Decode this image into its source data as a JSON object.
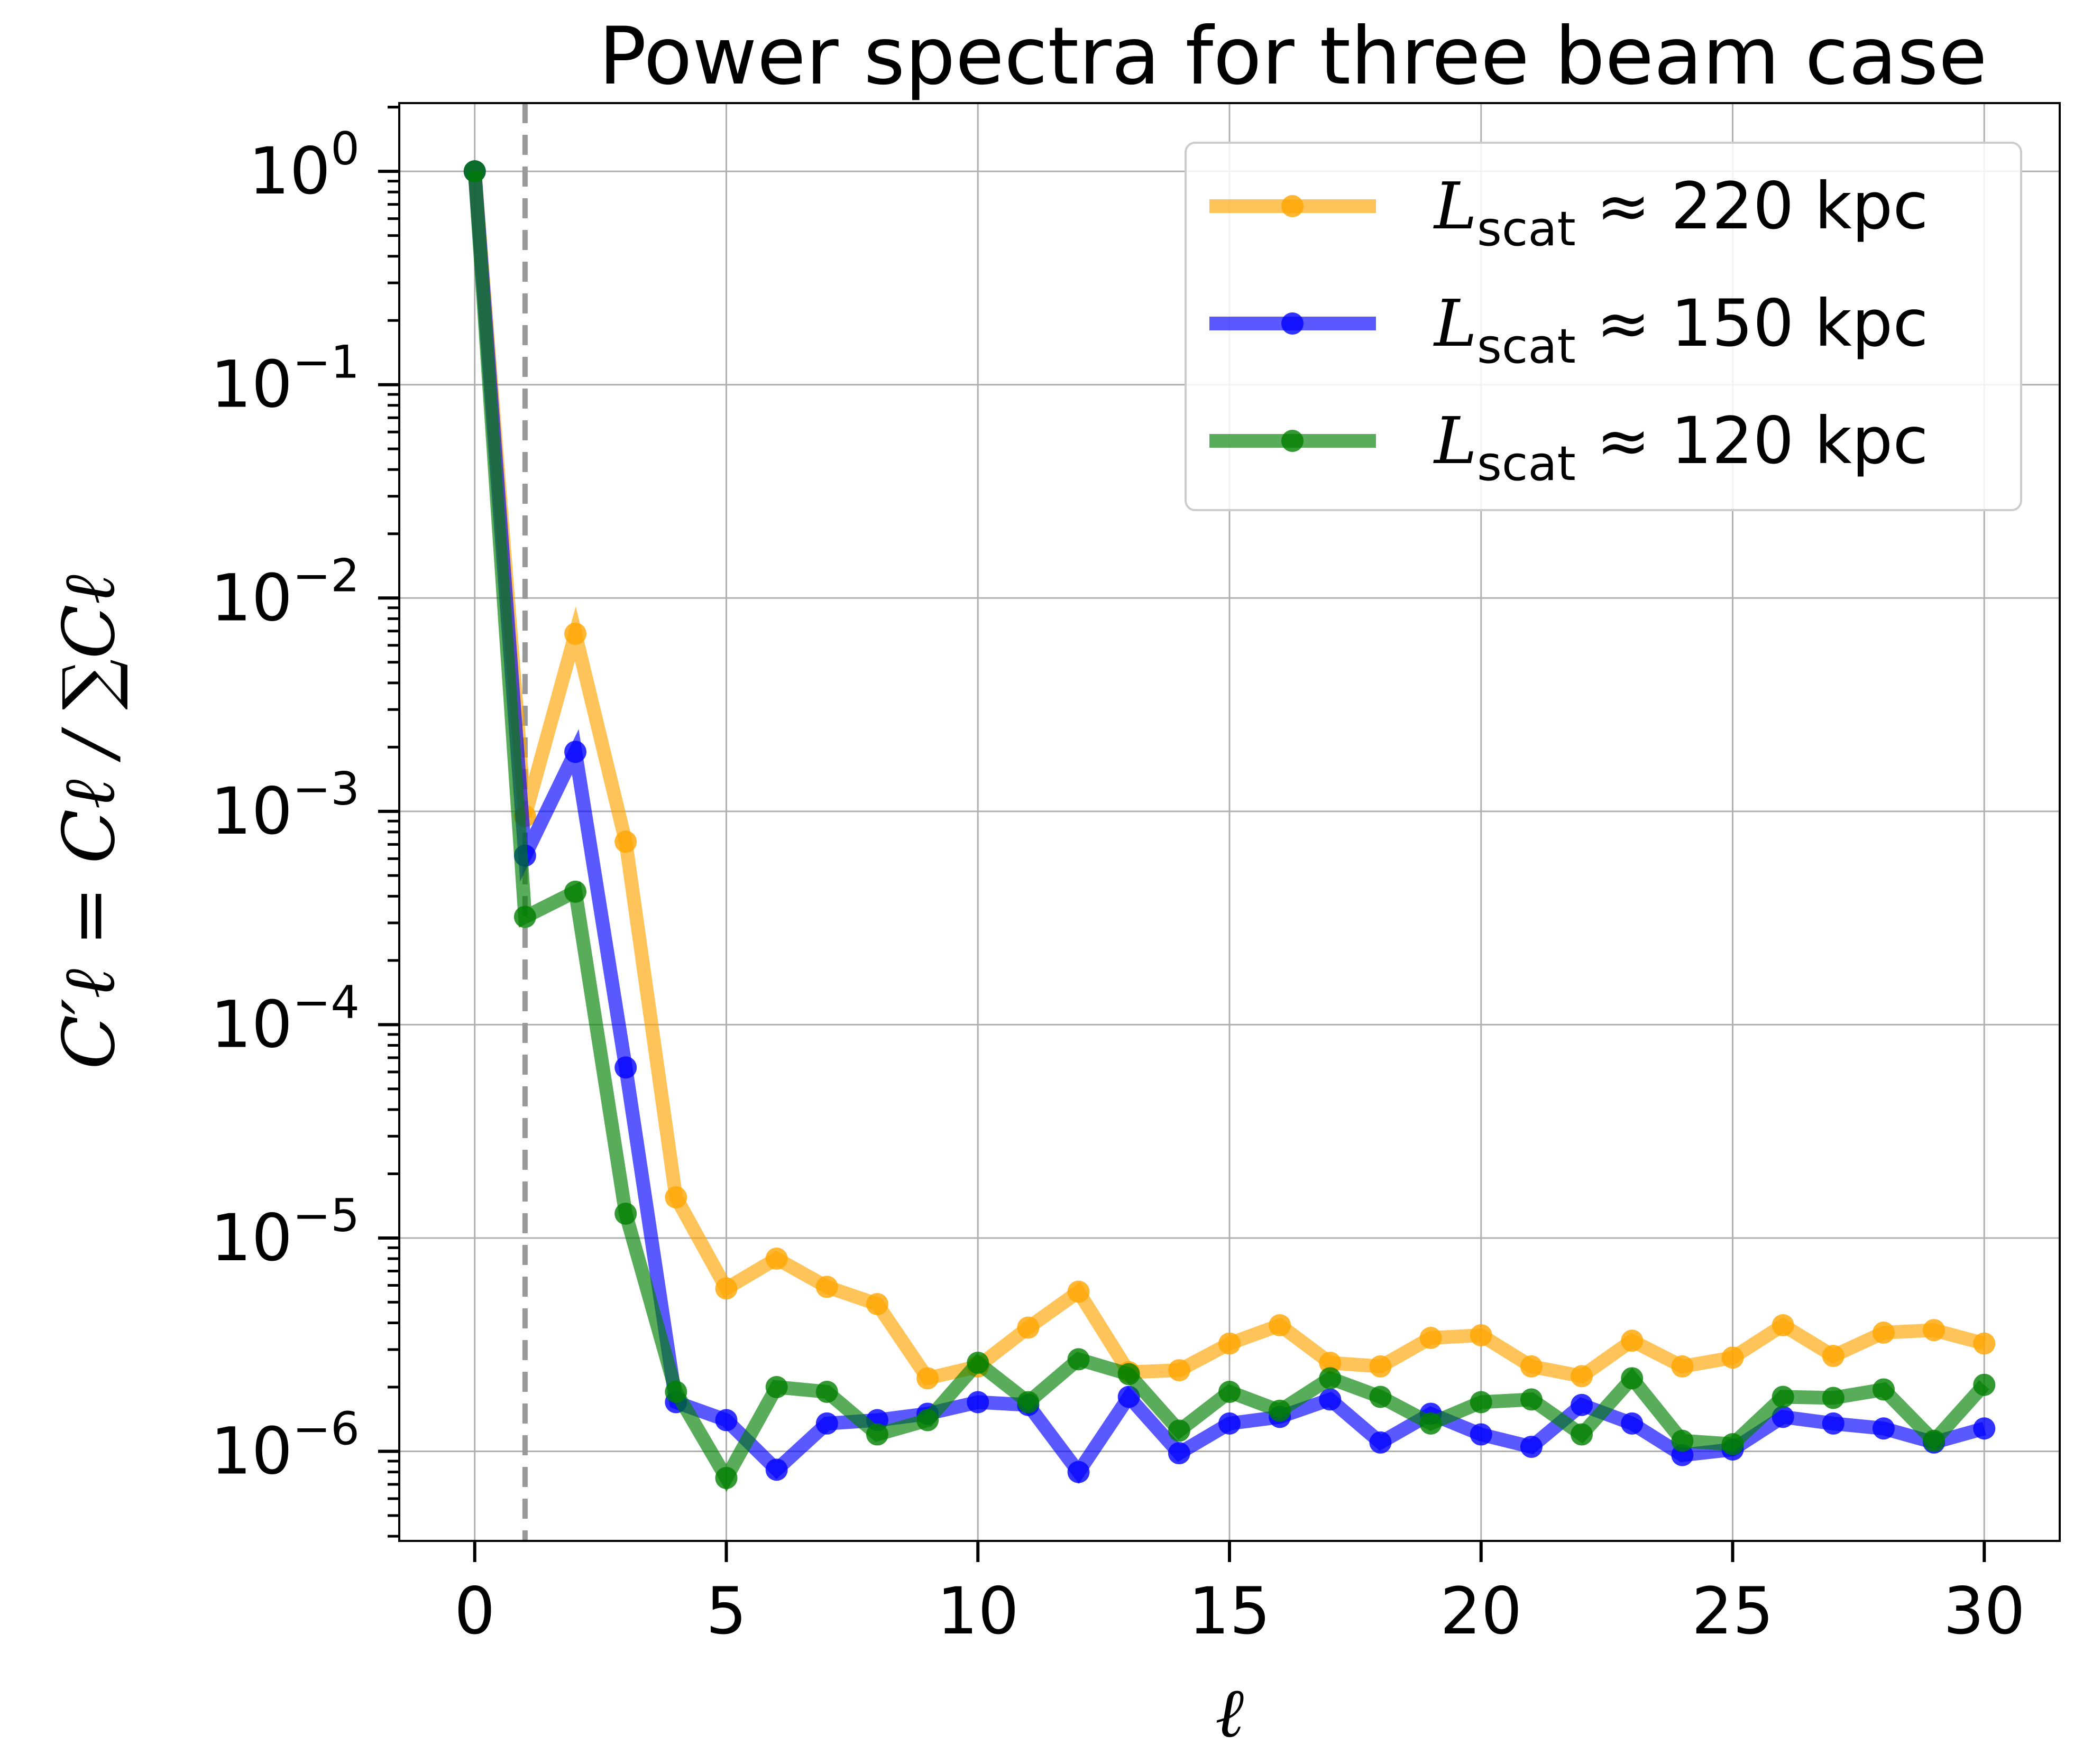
{
  "chart_data": {
    "type": "line",
    "title": "Power spectra for three beam case",
    "xlabel": "ℓ",
    "ylabel": "C′ℓ = Cℓ / ∑Cℓ",
    "xlim": [
      -1.5,
      31.5
    ],
    "ylim_log10": [
      -6.42,
      0.32
    ],
    "yscale": "log",
    "grid": true,
    "legend_position": "top-right",
    "x_ticks": [
      0,
      5,
      10,
      15,
      20,
      25,
      30
    ],
    "y_ticks": [
      {
        "value": 1.0,
        "base": "10",
        "exp": "0"
      },
      {
        "value": 0.1,
        "base": "10",
        "exp": "−1"
      },
      {
        "value": 0.01,
        "base": "10",
        "exp": "−2"
      },
      {
        "value": 0.001,
        "base": "10",
        "exp": "−3"
      },
      {
        "value": 0.0001,
        "base": "10",
        "exp": "−4"
      },
      {
        "value": 1e-05,
        "base": "10",
        "exp": "−5"
      },
      {
        "value": 1e-06,
        "base": "10",
        "exp": "−6"
      }
    ],
    "vline": {
      "x": 1,
      "color": "#999999",
      "style": "dashed"
    },
    "x": [
      0,
      1,
      2,
      3,
      4,
      5,
      6,
      7,
      8,
      9,
      10,
      11,
      12,
      13,
      14,
      15,
      16,
      17,
      18,
      19,
      20,
      21,
      22,
      23,
      24,
      25,
      26,
      27,
      28,
      29,
      30
    ],
    "series": [
      {
        "name": "L_scat ≈ 220 kpc",
        "label_main": "L",
        "label_sub": "scat",
        "label_rest": " ≈ 220 kpc",
        "color": "#FFA500",
        "values": [
          1.0,
          0.00095,
          0.0068,
          0.00072,
          1.55e-05,
          5.8e-06,
          8e-06,
          5.9e-06,
          4.9e-06,
          2.2e-06,
          2.5e-06,
          3.8e-06,
          5.6e-06,
          2.35e-06,
          2.4e-06,
          3.2e-06,
          3.9e-06,
          2.6e-06,
          2.5e-06,
          3.4e-06,
          3.5e-06,
          2.5e-06,
          2.25e-06,
          3.3e-06,
          2.5e-06,
          2.75e-06,
          3.9e-06,
          2.8e-06,
          3.6e-06,
          3.7e-06,
          3.2e-06
        ]
      },
      {
        "name": "L_scat ≈ 150 kpc",
        "label_main": "L",
        "label_sub": "scat",
        "label_rest": " ≈ 150 kpc",
        "color": "#0000FF",
        "values": [
          1.0,
          0.00062,
          0.0019,
          6.3e-05,
          1.7e-06,
          1.4e-06,
          8.2e-07,
          1.35e-06,
          1.4e-06,
          1.5e-06,
          1.7e-06,
          1.65e-06,
          8e-07,
          1.8e-06,
          9.8e-07,
          1.35e-06,
          1.45e-06,
          1.75e-06,
          1.1e-06,
          1.5e-06,
          1.2e-06,
          1.05e-06,
          1.65e-06,
          1.35e-06,
          9.6e-07,
          1.02e-06,
          1.45e-06,
          1.35e-06,
          1.28e-06,
          1.1e-06,
          1.28e-06
        ]
      },
      {
        "name": "L_scat ≈ 120 kpc",
        "label_main": "L",
        "label_sub": "scat",
        "label_rest": " ≈ 120 kpc",
        "color": "#008000",
        "values": [
          1.0,
          0.00032,
          0.00042,
          1.3e-05,
          1.9e-06,
          7.5e-07,
          2e-06,
          1.9e-06,
          1.2e-06,
          1.4e-06,
          2.6e-06,
          1.7e-06,
          2.7e-06,
          2.3e-06,
          1.25e-06,
          1.9e-06,
          1.55e-06,
          2.2e-06,
          1.8e-06,
          1.35e-06,
          1.7e-06,
          1.75e-06,
          1.2e-06,
          2.2e-06,
          1.12e-06,
          1.08e-06,
          1.8e-06,
          1.78e-06,
          1.95e-06,
          1.12e-06,
          2.05e-06
        ]
      }
    ]
  }
}
